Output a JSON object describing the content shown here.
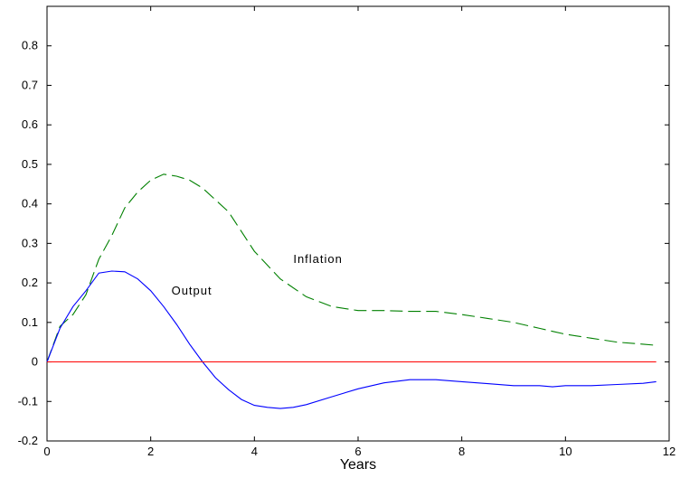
{
  "chart_data": {
    "type": "line",
    "title": "",
    "xlabel": "Years",
    "ylabel": "",
    "xlim": [
      0,
      12
    ],
    "ylim": [
      -0.2,
      0.9
    ],
    "xticks": [
      "0",
      "2",
      "4",
      "6",
      "8",
      "10",
      "12"
    ],
    "yticks": [
      "-0.2",
      "-0.1",
      "0",
      "0.1",
      "0.2",
      "0.3",
      "0.4",
      "0.5",
      "0.6",
      "0.7",
      "0.8"
    ],
    "grid": false,
    "legend": "none",
    "series": [
      {
        "name": "Inflation",
        "color": "#008000",
        "style": "dashed",
        "x": [
          0,
          0.25,
          0.5,
          0.75,
          1.0,
          1.25,
          1.5,
          1.75,
          2.0,
          2.25,
          2.5,
          2.75,
          3.0,
          3.5,
          4.0,
          4.5,
          5.0,
          5.5,
          6.0,
          6.5,
          7.0,
          7.5,
          8.0,
          8.5,
          9.0,
          9.5,
          10.0,
          10.5,
          11.0,
          11.5,
          11.75
        ],
        "y": [
          0,
          0.09,
          0.12,
          0.17,
          0.26,
          0.32,
          0.39,
          0.43,
          0.46,
          0.475,
          0.47,
          0.46,
          0.44,
          0.38,
          0.28,
          0.21,
          0.165,
          0.14,
          0.13,
          0.13,
          0.128,
          0.128,
          0.12,
          0.11,
          0.1,
          0.085,
          0.07,
          0.06,
          0.05,
          0.045,
          0.042
        ]
      },
      {
        "name": "Output",
        "color": "#0000ff",
        "style": "solid",
        "x": [
          0,
          0.25,
          0.5,
          0.75,
          1.0,
          1.25,
          1.5,
          1.75,
          2.0,
          2.25,
          2.5,
          2.75,
          3.0,
          3.25,
          3.5,
          3.75,
          4.0,
          4.25,
          4.5,
          4.75,
          5.0,
          5.5,
          6.0,
          6.5,
          7.0,
          7.5,
          8.0,
          8.5,
          9.0,
          9.5,
          9.75,
          10.0,
          10.5,
          11.0,
          11.5,
          11.75
        ],
        "y": [
          0,
          0.085,
          0.14,
          0.18,
          0.225,
          0.23,
          0.228,
          0.21,
          0.18,
          0.14,
          0.095,
          0.045,
          0.0,
          -0.04,
          -0.07,
          -0.095,
          -0.11,
          -0.115,
          -0.118,
          -0.115,
          -0.108,
          -0.088,
          -0.068,
          -0.053,
          -0.045,
          -0.045,
          -0.05,
          -0.055,
          -0.06,
          -0.06,
          -0.063,
          -0.06,
          -0.06,
          -0.057,
          -0.054,
          -0.05
        ]
      },
      {
        "name": "",
        "color": "#ff0000",
        "style": "solid",
        "x": [
          0,
          11.75
        ],
        "y": [
          0,
          0
        ]
      }
    ],
    "annotations": [
      {
        "text": "Inflation",
        "x": 4.75,
        "y": 0.25
      },
      {
        "text": "Output",
        "x": 2.4,
        "y": 0.17
      }
    ]
  }
}
